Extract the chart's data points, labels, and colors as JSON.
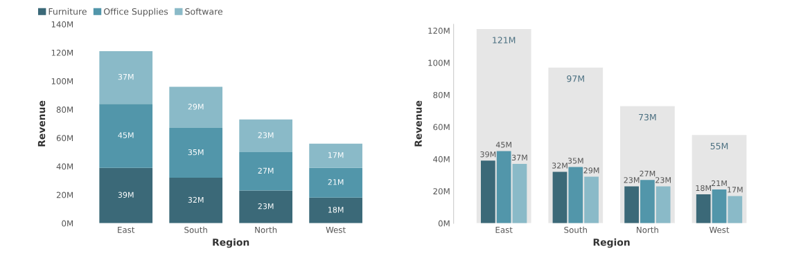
{
  "chart_data": [
    {
      "type": "bar",
      "stacked": true,
      "xlabel": "Region",
      "ylabel": "Revenue",
      "categories": [
        "East",
        "South",
        "North",
        "West"
      ],
      "series": [
        {
          "name": "Furniture",
          "color": "#3b6978",
          "values": [
            39,
            32,
            23,
            18
          ],
          "value_labels": [
            "39M",
            "32M",
            "23M",
            "18M"
          ]
        },
        {
          "name": "Office Supplies",
          "color": "#5296aa",
          "values": [
            45,
            35,
            27,
            21
          ],
          "value_labels": [
            "45M",
            "35M",
            "27M",
            "21M"
          ]
        },
        {
          "name": "Software",
          "color": "#8abac8",
          "values": [
            37,
            29,
            23,
            17
          ],
          "value_labels": [
            "37M",
            "29M",
            "23M",
            "17M"
          ]
        }
      ],
      "ylim": [
        0,
        140
      ],
      "yticks": [
        {
          "value": 0,
          "label": "0M"
        },
        {
          "value": 20,
          "label": "20M"
        },
        {
          "value": 40,
          "label": "40M"
        },
        {
          "value": 60,
          "label": "60M"
        },
        {
          "value": 80,
          "label": "80M"
        },
        {
          "value": 100,
          "label": "100M"
        },
        {
          "value": 120,
          "label": "120M"
        },
        {
          "value": 140,
          "label": "140M"
        }
      ],
      "grid": false,
      "legend": "top left"
    },
    {
      "type": "bar",
      "xlabel": "Region",
      "ylabel": "Revenue",
      "categories": [
        "East",
        "South",
        "North",
        "West"
      ],
      "series": [
        {
          "color": "#e6e6e6",
          "values": [
            121,
            97,
            73,
            55
          ],
          "value_labels": [
            "121M",
            "97M",
            "73M",
            "55M"
          ]
        },
        {
          "color": "#3b6978",
          "values": [
            39,
            32,
            23,
            18
          ],
          "value_labels": [
            "39M",
            "32M",
            "23M",
            "18M"
          ]
        },
        {
          "color": "#5296aa",
          "values": [
            45,
            35,
            27,
            21
          ],
          "value_labels": [
            "45M",
            "35M",
            "27M",
            "21M"
          ]
        },
        {
          "color": "#8abac8",
          "values": [
            37,
            29,
            23,
            17
          ],
          "value_labels": [
            "37M",
            "29M",
            "23M",
            "17M"
          ]
        }
      ],
      "ylim": [
        0,
        124
      ],
      "yticks": [
        {
          "value": 0,
          "label": "0M"
        },
        {
          "value": 20,
          "label": "20M"
        },
        {
          "value": 40,
          "label": "40M"
        },
        {
          "value": 60,
          "label": "60M"
        },
        {
          "value": 80,
          "label": "80M"
        },
        {
          "value": 100,
          "label": "100M"
        },
        {
          "value": 120,
          "label": "120M"
        }
      ],
      "grid": false,
      "legend": false
    }
  ]
}
